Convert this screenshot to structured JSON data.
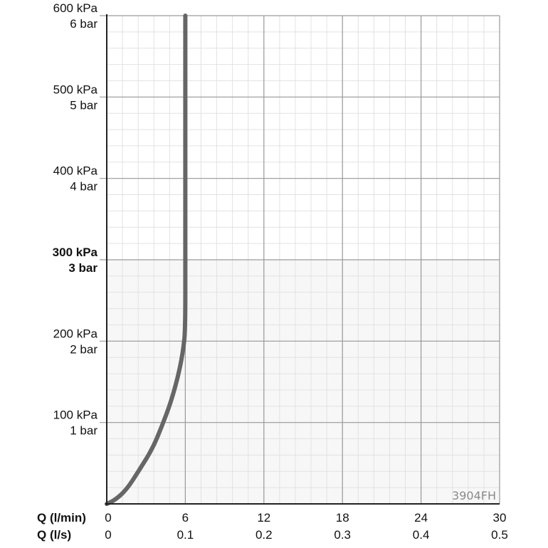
{
  "chart_data": {
    "type": "line",
    "model_label": "3904FH",
    "x_axis": {
      "primary_label": "Q (l/min)",
      "secondary_label": "Q (l/s)",
      "range": [
        0,
        30
      ],
      "ticks": [
        0,
        6,
        12,
        18,
        24,
        30
      ],
      "tick_labels_primary": [
        "0",
        "6",
        "12",
        "18",
        "24",
        "30"
      ],
      "tick_labels_secondary": [
        "0",
        "0.1",
        "0.2",
        "0.3",
        "0.4",
        "0.5"
      ]
    },
    "y_axis": {
      "range": [
        0,
        600
      ],
      "unit": "kPa",
      "ticks": [
        {
          "value": 600,
          "kpa": "600 kPa",
          "bar": "6 bar",
          "bold": false
        },
        {
          "value": 500,
          "kpa": "500 kPa",
          "bar": "5 bar",
          "bold": false
        },
        {
          "value": 400,
          "kpa": "400 kPa",
          "bar": "4 bar",
          "bold": false
        },
        {
          "value": 300,
          "kpa": "300 kPa",
          "bar": "3 bar",
          "bold": true
        },
        {
          "value": 200,
          "kpa": "200 kPa",
          "bar": "2 bar",
          "bold": false
        },
        {
          "value": 100,
          "kpa": "100 kPa",
          "bar": "1 bar",
          "bold": false
        }
      ]
    },
    "grid": {
      "major": true,
      "minor": true,
      "minor_step_x": 1.2,
      "minor_step_y": 20
    },
    "series": [
      {
        "color": "#666666",
        "points": [
          [
            0,
            0
          ],
          [
            0.5,
            3
          ],
          [
            1.5,
            17
          ],
          [
            2.5,
            42
          ],
          [
            3.5,
            68
          ],
          [
            4.2,
            95
          ],
          [
            4.9,
            125
          ],
          [
            5.5,
            160
          ],
          [
            5.85,
            190
          ],
          [
            6,
            215
          ],
          [
            6,
            300
          ],
          [
            6,
            400
          ],
          [
            6,
            500
          ],
          [
            6,
            600
          ]
        ]
      }
    ]
  }
}
